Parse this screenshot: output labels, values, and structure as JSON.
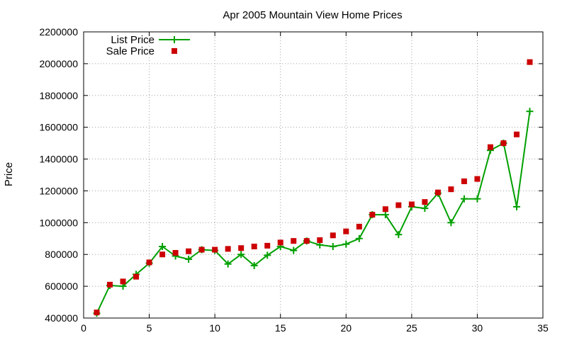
{
  "chart_data": {
    "type": "line",
    "title": "Apr 2005 Mountain View Home Prices",
    "xlabel": "",
    "ylabel": "Price",
    "xlim": [
      0,
      35
    ],
    "ylim": [
      400000,
      2200000
    ],
    "x_ticks": [
      "0",
      "5",
      "10",
      "15",
      "20",
      "25",
      "30",
      "35"
    ],
    "y_ticks": [
      "400000",
      "600000",
      "800000",
      "1000000",
      "1200000",
      "1400000",
      "1600000",
      "1800000",
      "2000000",
      "2200000"
    ],
    "grid": true,
    "legend_position": "top-left",
    "x": [
      1,
      2,
      3,
      4,
      5,
      6,
      7,
      8,
      9,
      10,
      11,
      12,
      13,
      14,
      15,
      16,
      17,
      18,
      19,
      20,
      21,
      22,
      23,
      24,
      25,
      26,
      27,
      28,
      29,
      30,
      31,
      32,
      33,
      34
    ],
    "series": [
      {
        "name": "List Price",
        "style": "line+cross",
        "color": "#00a000",
        "values": [
          430000,
          605000,
          600000,
          675000,
          745000,
          850000,
          790000,
          770000,
          830000,
          825000,
          740000,
          800000,
          730000,
          795000,
          850000,
          825000,
          885000,
          860000,
          850000,
          865000,
          900000,
          1050000,
          1050000,
          925000,
          1100000,
          1090000,
          1185000,
          1000000,
          1150000,
          1150000,
          1455000,
          1500000,
          1100000,
          1700000
        ]
      },
      {
        "name": "Sale Price",
        "style": "square",
        "color": "#cc0000",
        "values": [
          435000,
          610000,
          630000,
          660000,
          750000,
          800000,
          810000,
          820000,
          830000,
          830000,
          835000,
          840000,
          850000,
          855000,
          875000,
          885000,
          885000,
          890000,
          920000,
          945000,
          975000,
          1050000,
          1085000,
          1110000,
          1115000,
          1130000,
          1190000,
          1210000,
          1260000,
          1275000,
          1475000,
          1500000,
          1555000,
          2010000
        ]
      }
    ]
  }
}
